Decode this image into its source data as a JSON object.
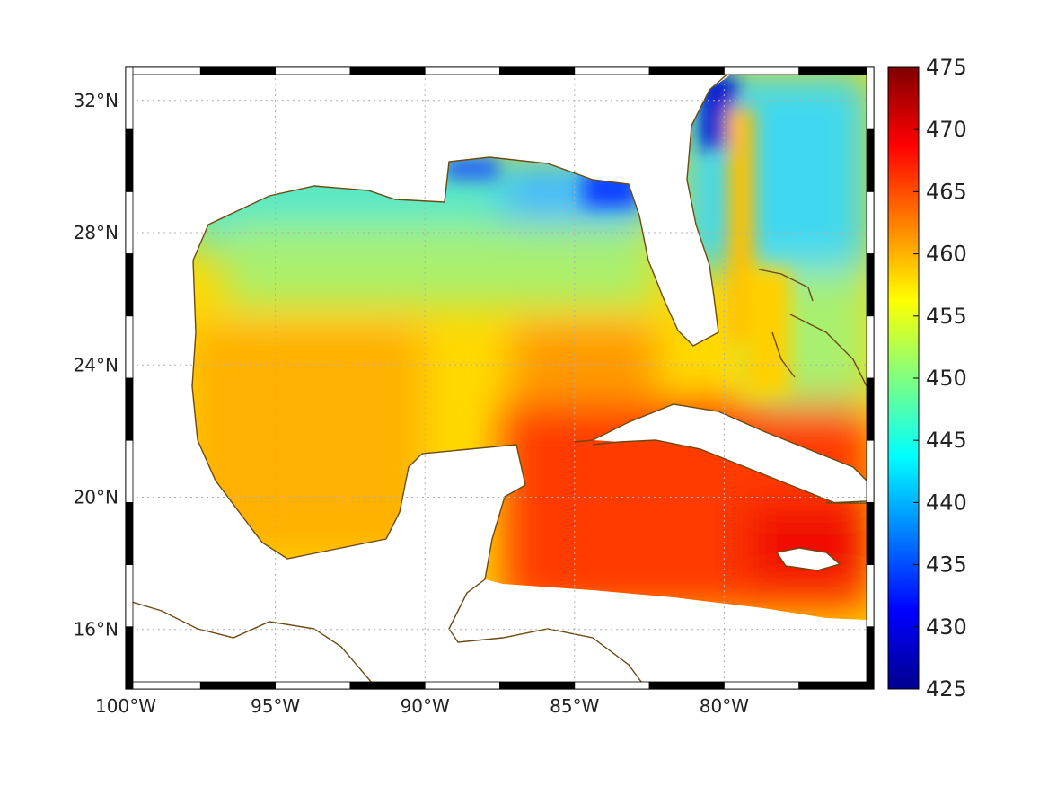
{
  "map": {
    "lon_range": [
      -100,
      -75
    ],
    "lat_range": [
      14.2,
      33
    ],
    "lon_ticks": [
      {
        "value": -100,
        "label": "100°W"
      },
      {
        "value": -95,
        "label": "95°W"
      },
      {
        "value": -90,
        "label": "90°W"
      },
      {
        "value": -85,
        "label": "85°W"
      },
      {
        "value": -80,
        "label": "80°W"
      }
    ],
    "lat_ticks": [
      {
        "value": 16,
        "label": "16°N"
      },
      {
        "value": 20,
        "label": "20°N"
      },
      {
        "value": 24,
        "label": "24°N"
      },
      {
        "value": 28,
        "label": "28°N"
      },
      {
        "value": 32,
        "label": "32°N"
      }
    ],
    "grid": true,
    "coastline_color": "#6b4a12"
  },
  "colorbar": {
    "min": 425,
    "max": 475,
    "colormap": "jet",
    "ticks": [
      {
        "value": 425,
        "label": "425"
      },
      {
        "value": 430,
        "label": "430"
      },
      {
        "value": 435,
        "label": "435"
      },
      {
        "value": 440,
        "label": "440"
      },
      {
        "value": 445,
        "label": "445"
      },
      {
        "value": 450,
        "label": "450"
      },
      {
        "value": 455,
        "label": "455"
      },
      {
        "value": 460,
        "label": "460"
      },
      {
        "value": 465,
        "label": "465"
      },
      {
        "value": 470,
        "label": "470"
      },
      {
        "value": 475,
        "label": "475"
      }
    ]
  }
}
